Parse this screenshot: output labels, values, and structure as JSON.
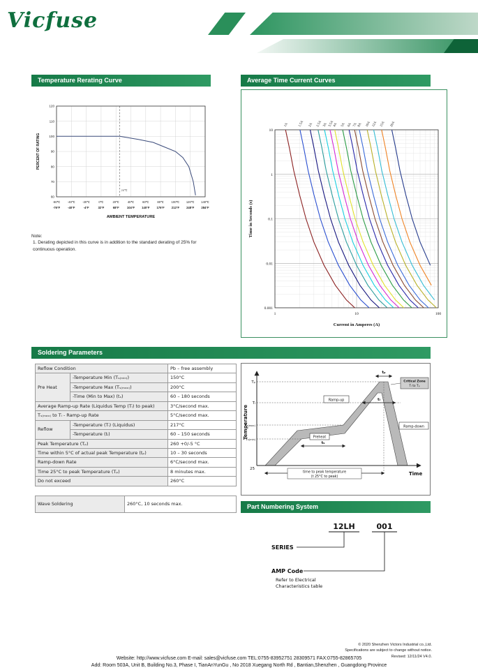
{
  "accent": {
    "green": "#1c814d",
    "green_dark": "#0f6b3c",
    "green_light": "#bed8c8"
  },
  "logo": "Vicfuse",
  "sections": {
    "rerating_title": "Temperature Rerating Curve",
    "tcc_title": "Average Time Current Curves",
    "soldering_title": "Soldering Parameters",
    "part_numbering_title": "Part Numbering System"
  },
  "note": {
    "label": "Note:",
    "item": "1.  Derating depicted in this curve is in addition to the standard derating of 25% for continuous operation."
  },
  "chart_data": [
    {
      "name": "temperature_rerating",
      "type": "line",
      "xlabel": "AMBIENT TEMPERATURE",
      "ylabel": "PERCENT OF RATING",
      "xlim": [
        -60,
        140
      ],
      "ylim": [
        60,
        120
      ],
      "grid": true,
      "x_ticks_c": [
        "-60℃",
        "-40℃",
        "-20℃",
        "0℃",
        "20℃",
        "40℃",
        "60℃",
        "80℃",
        "100℃",
        "120℃",
        "140℃"
      ],
      "x_ticks_f": [
        "-76°F",
        "-40°F",
        "-4°F",
        "32°F",
        "68°F",
        "104°F",
        "140°F",
        "176°F",
        "212°F",
        "248°F",
        "284°F"
      ],
      "y_ticks": [
        60,
        70,
        80,
        90,
        100,
        110,
        120
      ],
      "reference_line": {
        "x": 25,
        "label": "25℃"
      },
      "curve_color": "#3a4a7a",
      "points": [
        [
          -60,
          100
        ],
        [
          25,
          100
        ],
        [
          50,
          98
        ],
        [
          70,
          96
        ],
        [
          85,
          93
        ],
        [
          100,
          90
        ],
        [
          110,
          86
        ],
        [
          118,
          80
        ],
        [
          124,
          70
        ],
        [
          127,
          61
        ]
      ]
    },
    {
      "name": "average_time_current",
      "type": "line",
      "log_x": true,
      "log_y": true,
      "xlabel": "Current in Amperes (A)",
      "ylabel": "Time in Seconds (s)",
      "xlim": [
        1,
        100
      ],
      "ylim": [
        0.001,
        10
      ],
      "grid": true,
      "x_ticks": [
        1,
        10,
        100
      ],
      "y_ticks": [
        10,
        1,
        0.1,
        0.01,
        0.001
      ],
      "multiplier_profile": [
        [
          1.35,
          10
        ],
        [
          1.5,
          4
        ],
        [
          1.7,
          1.2
        ],
        [
          2.0,
          0.35
        ],
        [
          2.4,
          0.1
        ],
        [
          3.0,
          0.03
        ],
        [
          4.0,
          0.009
        ],
        [
          5.5,
          0.0032
        ],
        [
          7.5,
          0.0015
        ],
        [
          9.5,
          0.001
        ]
      ],
      "series": [
        {
          "label": "1A",
          "rating": 1,
          "color": "#8b2020"
        },
        {
          "label": "1.5A",
          "rating": 1.5,
          "color": "#2a4fd0"
        },
        {
          "label": "2A",
          "rating": 2,
          "color": "#14147e"
        },
        {
          "label": "2.5A",
          "rating": 2.5,
          "color": "#2a9c9c"
        },
        {
          "label": "3A",
          "rating": 3,
          "color": "#18cfe0"
        },
        {
          "label": "3.5A",
          "rating": 3.5,
          "color": "#d529d5"
        },
        {
          "label": "4A",
          "rating": 4,
          "color": "#e0e02a"
        },
        {
          "label": "5A",
          "rating": 5,
          "color": "#2a9c45"
        },
        {
          "label": "6A",
          "rating": 6,
          "color": "#2626a8"
        },
        {
          "label": "7A",
          "rating": 7,
          "color": "#8a4a30"
        },
        {
          "label": "8A",
          "rating": 8,
          "color": "#3a6ad8"
        },
        {
          "label": "10A",
          "rating": 10,
          "color": "#b8b028"
        },
        {
          "label": "12A",
          "rating": 12,
          "color": "#34bcd4"
        },
        {
          "label": "15A",
          "rating": 15,
          "color": "#ef8324"
        },
        {
          "label": "20A",
          "rating": 20,
          "color": "#243a8c"
        }
      ]
    }
  ],
  "soldering_table": {
    "rows": [
      {
        "cells": [
          {
            "t": "Reflow Condition",
            "cs": 2,
            "h": 1
          },
          {
            "t": "Pb – free assembly"
          }
        ]
      },
      {
        "cells": [
          {
            "t": "Pre Heat",
            "rs": 3,
            "h": 1
          },
          {
            "t": "-Temperature Min (Tₛ₍ₘᵢₙ₎)",
            "h": 1
          },
          {
            "t": "150°C"
          }
        ]
      },
      {
        "cells": [
          {
            "t": "-Temperature Max (Tₛ₍ₘₐₓ₎)",
            "h": 1
          },
          {
            "t": "200°C"
          }
        ]
      },
      {
        "cells": [
          {
            "t": "-Time (Min to Max) (tₛ)",
            "h": 1
          },
          {
            "t": "60 – 180 seconds"
          }
        ]
      },
      {
        "cells": [
          {
            "t": "Average Ramp-up Rate (Liquidus Temp (Tₗ) to peak)",
            "cs": 2,
            "h": 1
          },
          {
            "t": "3°C/second max."
          }
        ]
      },
      {
        "cells": [
          {
            "t": "Tₛ₍ₘₐₓ₎ to Tₗ - Ramp-up Rate",
            "cs": 2,
            "h": 1
          },
          {
            "t": "5°C/second max."
          }
        ]
      },
      {
        "cells": [
          {
            "t": "Reflow",
            "rs": 2,
            "h": 1
          },
          {
            "t": "-Temperature (Tₗ) (Liquidus)",
            "h": 1
          },
          {
            "t": "217°C"
          }
        ]
      },
      {
        "cells": [
          {
            "t": "-Temperature (tₗ)",
            "h": 1
          },
          {
            "t": "60 – 150 seconds"
          }
        ]
      },
      {
        "cells": [
          {
            "t": "Peak Temperature (Tₚ)",
            "cs": 2,
            "h": 1
          },
          {
            "t": "260 +0/-5 °C"
          }
        ]
      },
      {
        "cells": [
          {
            "t": "Time within 5°C of actual peak Temperature (tₚ)",
            "cs": 2,
            "h": 1
          },
          {
            "t": "10 – 30 seconds"
          }
        ]
      },
      {
        "cells": [
          {
            "t": "Ramp-down Rate",
            "cs": 2,
            "h": 1
          },
          {
            "t": "6°C/second max."
          }
        ]
      },
      {
        "cells": [
          {
            "t": "Time 25°C to peak Temperature (Tₚ)",
            "cs": 2,
            "h": 1
          },
          {
            "t": "8 minutes max."
          }
        ]
      },
      {
        "cells": [
          {
            "t": "Do not exceed",
            "cs": 2,
            "h": 1
          },
          {
            "t": "260°C"
          }
        ]
      }
    ],
    "wave": {
      "label": "Wave Soldering",
      "value": "260°C, 10 seconds max."
    }
  },
  "reflow_diagram": {
    "axis": {
      "y": "Temperature",
      "x": "Time"
    },
    "y_labels": {
      "tp": "Tₚ",
      "tl": "Tₗ",
      "tsmax": "Tₛ₍ₘₐₓ₎",
      "tsmin": "Tₛ₍ₘᵢₙ₎",
      "t25": "25"
    },
    "zones": {
      "ramp_up": "Ramp-up",
      "preheat": "Preheat",
      "ramp_down": "Ramp-down",
      "critical_1": "Critical Zone",
      "critical_2": "Tₗ to Tₚ"
    },
    "times": {
      "tp": "tₚ",
      "tl": "tₗ",
      "ts": "tₛ"
    },
    "bottom_1": "time to peak temperature",
    "bottom_2": "(t 25°C to peak)"
  },
  "part_numbering": {
    "code_series": "12LH",
    "code_amp": "001",
    "series_label": "SERIES",
    "amp_label": "AMP Code",
    "amp_note_1": "Refer to Electrical",
    "amp_note_2": "Characteristics table"
  },
  "footer": {
    "copyright": "© 2020 Shenzhen Victors Industrial co.,Ltd.",
    "notice": "Specifications are subject to change without notice.",
    "revised": "Revised: 12/11/24   V4.0.",
    "contact": "Website: http://www.vicfuse.com E-mail: sales@vicfuse.com TEL:0755-83952751 28309571  FAX:0755-82865705",
    "address": "Add: Room 503A, Unit B, Building No.3, Phase I, TianAnYunGu , No 2018 Xuegang North Rd , Bantian,Shenzhen , Guangdong Province"
  }
}
